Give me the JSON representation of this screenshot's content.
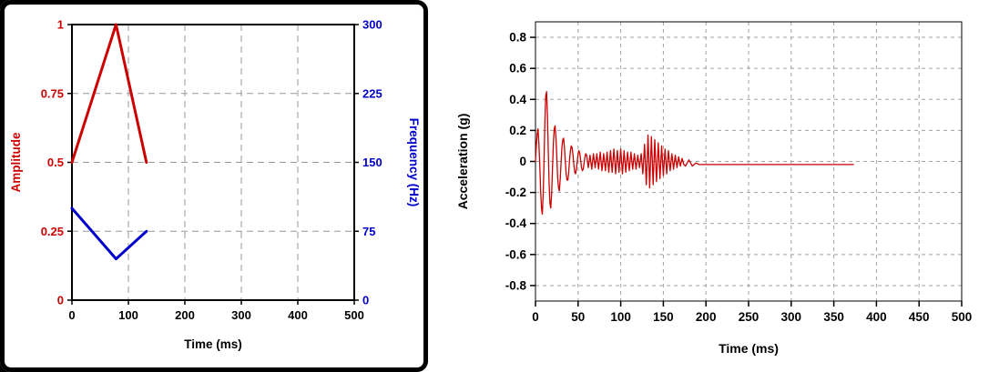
{
  "page": {
    "background": "#ffffff",
    "corner_color": "#000000"
  },
  "chart_data": [
    {
      "id": "pulse-chart",
      "type": "line",
      "title": "",
      "xlabel": "Time (ms)",
      "xlim": [
        0,
        500
      ],
      "xticks": [
        0,
        100,
        200,
        300,
        400,
        500
      ],
      "grid": {
        "on": true,
        "color": "#999999",
        "dash": "7,5"
      },
      "frame_width": 2,
      "legend": "none",
      "axes": [
        {
          "side": "left",
          "label": "Amplitude",
          "color": "#cc0000",
          "lim": [
            0,
            1
          ],
          "ticks": [
            0,
            0.25,
            0.5,
            0.75,
            1
          ]
        },
        {
          "side": "right",
          "label": "Frequency (Hz)",
          "color": "#0000cc",
          "lim": [
            0,
            300
          ],
          "ticks": [
            0,
            75,
            150,
            225,
            300
          ]
        }
      ],
      "x": [
        0,
        78,
        132
      ],
      "series": [
        {
          "name": "amplitude-envelope",
          "color": "#cc0000",
          "width": 3,
          "axis": 0,
          "values": [
            0.5,
            1.0,
            0.5
          ]
        },
        {
          "name": "frequency-sweep",
          "color": "#0000cc",
          "width": 3,
          "axis": 1,
          "values": [
            100,
            45,
            75
          ]
        }
      ]
    },
    {
      "id": "acceleration-chart",
      "type": "line",
      "title": "",
      "xlabel": "Time (ms)",
      "xlim": [
        0,
        500
      ],
      "xticks": [
        0,
        50,
        100,
        150,
        200,
        250,
        300,
        350,
        400,
        450,
        500
      ],
      "grid": {
        "on": true,
        "color": "#a0a0a0",
        "dash": "4,4"
      },
      "frame_width": 1,
      "legend": "none",
      "axes": [
        {
          "side": "left",
          "label": "Acceleration (g)",
          "color": "#000000",
          "lim": [
            -0.9,
            0.9
          ],
          "ticks": [
            -0.8,
            -0.6,
            -0.4,
            -0.2,
            0,
            0.2,
            0.4,
            0.6,
            0.8
          ]
        }
      ],
      "series": [
        {
          "name": "acceleration-response",
          "color": "#cc0000",
          "width": 1.3,
          "axis": 0,
          "points": [
            [
              0,
              0
            ],
            [
              1,
              0.1
            ],
            [
              2,
              0.18
            ],
            [
              3,
              0.21
            ],
            [
              4,
              0.12
            ],
            [
              5,
              -0.02
            ],
            [
              6,
              -0.18
            ],
            [
              7,
              -0.3
            ],
            [
              8,
              -0.34
            ],
            [
              9,
              -0.22
            ],
            [
              10,
              0
            ],
            [
              11,
              0.25
            ],
            [
              12,
              0.42
            ],
            [
              13,
              0.45
            ],
            [
              14,
              0.3
            ],
            [
              15,
              0.08
            ],
            [
              16,
              -0.15
            ],
            [
              17,
              -0.27
            ],
            [
              18,
              -0.3
            ],
            [
              19,
              -0.2
            ],
            [
              20,
              -0.04
            ],
            [
              21,
              0.12
            ],
            [
              22,
              0.21
            ],
            [
              23,
              0.23
            ],
            [
              24,
              0.15
            ],
            [
              25,
              0.03
            ],
            [
              26,
              -0.1
            ],
            [
              27,
              -0.17
            ],
            [
              28,
              -0.19
            ],
            [
              29,
              -0.12
            ],
            [
              30,
              -0.01
            ],
            [
              31,
              0.09
            ],
            [
              32,
              0.14
            ],
            [
              33,
              0.15
            ],
            [
              34,
              0.09
            ],
            [
              35,
              0
            ],
            [
              36,
              -0.08
            ],
            [
              37,
              -0.12
            ],
            [
              38,
              -0.12
            ],
            [
              39,
              -0.07
            ],
            [
              40,
              0.01
            ],
            [
              41,
              0.07
            ],
            [
              42,
              0.1
            ],
            [
              43,
              0.09
            ],
            [
              44,
              0.04
            ],
            [
              45,
              -0.02
            ],
            [
              46,
              -0.07
            ],
            [
              47,
              -0.08
            ],
            [
              48,
              -0.05
            ],
            [
              49,
              0
            ],
            [
              50,
              0.05
            ],
            [
              51,
              0.07
            ],
            [
              52,
              0.05
            ],
            [
              53,
              0.01
            ],
            [
              54,
              -0.04
            ],
            [
              55,
              -0.06
            ],
            [
              56,
              -0.05
            ],
            [
              57,
              -0.01
            ],
            [
              58,
              0.03
            ],
            [
              59,
              0.05
            ],
            [
              60,
              0.04
            ],
            [
              62,
              -0.04
            ],
            [
              64,
              0.04
            ],
            [
              66,
              -0.05
            ],
            [
              68,
              0.05
            ],
            [
              70,
              -0.04
            ],
            [
              72,
              0.05
            ],
            [
              74,
              -0.05
            ],
            [
              76,
              0.06
            ],
            [
              78,
              -0.06
            ],
            [
              80,
              0.05
            ],
            [
              82,
              -0.06
            ],
            [
              84,
              0.06
            ],
            [
              86,
              -0.07
            ],
            [
              88,
              0.07
            ],
            [
              90,
              -0.07
            ],
            [
              92,
              0.08
            ],
            [
              94,
              -0.08
            ],
            [
              96,
              0.07
            ],
            [
              98,
              -0.07
            ],
            [
              100,
              0.08
            ],
            [
              102,
              -0.08
            ],
            [
              104,
              0.07
            ],
            [
              106,
              -0.07
            ],
            [
              108,
              0.06
            ],
            [
              110,
              -0.06
            ],
            [
              112,
              0.06
            ],
            [
              114,
              -0.05
            ],
            [
              116,
              0.05
            ],
            [
              118,
              -0.05
            ],
            [
              120,
              0.04
            ],
            [
              122,
              -0.04
            ],
            [
              124,
              0.05
            ],
            [
              126,
              -0.08
            ],
            [
              128,
              0.11
            ],
            [
              130,
              -0.15
            ],
            [
              132,
              0.17
            ],
            [
              134,
              -0.17
            ],
            [
              136,
              0.16
            ],
            [
              138,
              -0.15
            ],
            [
              140,
              0.14
            ],
            [
              142,
              -0.13
            ],
            [
              144,
              0.12
            ],
            [
              146,
              -0.11
            ],
            [
              148,
              0.1
            ],
            [
              150,
              -0.09
            ],
            [
              152,
              0.08
            ],
            [
              154,
              -0.08
            ],
            [
              156,
              0.07
            ],
            [
              158,
              -0.06
            ],
            [
              160,
              0.05
            ],
            [
              162,
              -0.05
            ],
            [
              164,
              0.04
            ],
            [
              166,
              -0.04
            ],
            [
              168,
              0.03
            ],
            [
              170,
              -0.03
            ],
            [
              172,
              0.02
            ],
            [
              174,
              -0.02
            ],
            [
              176,
              -0.03
            ],
            [
              180,
              0.01
            ],
            [
              184,
              -0.03
            ],
            [
              188,
              -0.01
            ],
            [
              192,
              -0.02
            ],
            [
              196,
              -0.02
            ],
            [
              200,
              -0.02
            ],
            [
              210,
              -0.02
            ],
            [
              220,
              -0.02
            ],
            [
              230,
              -0.02
            ],
            [
              240,
              -0.02
            ],
            [
              250,
              -0.02
            ],
            [
              260,
              -0.02
            ],
            [
              270,
              -0.02
            ],
            [
              280,
              -0.02
            ],
            [
              290,
              -0.02
            ],
            [
              300,
              -0.02
            ],
            [
              310,
              -0.02
            ],
            [
              320,
              -0.02
            ],
            [
              330,
              -0.02
            ],
            [
              340,
              -0.02
            ],
            [
              350,
              -0.02
            ],
            [
              360,
              -0.02
            ],
            [
              370,
              -0.02
            ],
            [
              373,
              -0.02
            ]
          ]
        }
      ]
    }
  ]
}
